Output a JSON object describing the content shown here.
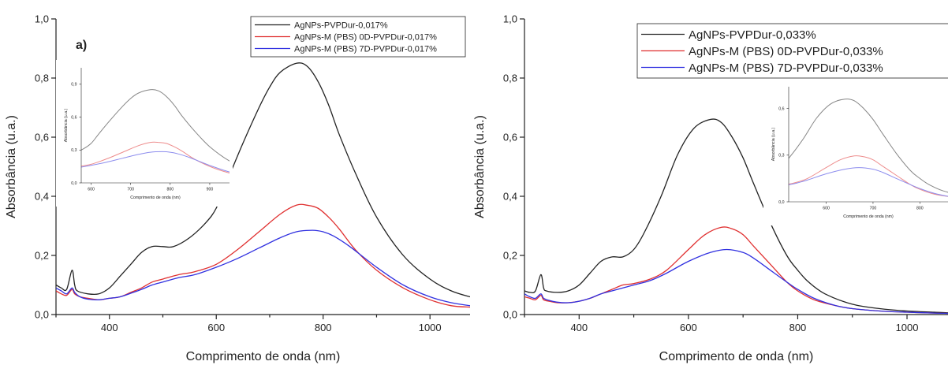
{
  "chart_data": [
    {
      "type": "line",
      "panel_label": "a)",
      "xlabel": "Comprimento de onda (nm)",
      "ylabel": "Absorbância (u.a.)",
      "xlim": [
        300,
        1075
      ],
      "ylim": [
        0,
        1.0
      ],
      "xticks": [
        "400",
        "600",
        "800",
        "1000"
      ],
      "yticks": [
        "0,0",
        "0,2",
        "0,4",
        "0,6",
        "0,8",
        "1,0"
      ],
      "legend_position": "top-right",
      "series": [
        {
          "name": "AgNPs-PVPDur-0,017%",
          "color": "#222222",
          "x": [
            300,
            310,
            320,
            330,
            335,
            340,
            360,
            380,
            400,
            420,
            440,
            460,
            480,
            500,
            520,
            550,
            580,
            600,
            620,
            650,
            680,
            700,
            720,
            750,
            770,
            790,
            810,
            830,
            860,
            900,
            950,
            1000,
            1040,
            1075
          ],
          "y": [
            0.1,
            0.09,
            0.085,
            0.15,
            0.1,
            0.08,
            0.07,
            0.07,
            0.09,
            0.13,
            0.17,
            0.21,
            0.23,
            0.23,
            0.23,
            0.26,
            0.31,
            0.36,
            0.45,
            0.58,
            0.7,
            0.77,
            0.82,
            0.85,
            0.84,
            0.79,
            0.71,
            0.61,
            0.48,
            0.33,
            0.2,
            0.12,
            0.08,
            0.06
          ]
        },
        {
          "name": "AgNPs-M (PBS) 0D-PVPDur-0,017%",
          "color": "#e03030",
          "x": [
            300,
            310,
            320,
            330,
            335,
            345,
            360,
            380,
            400,
            420,
            440,
            460,
            480,
            500,
            530,
            560,
            600,
            640,
            680,
            720,
            750,
            770,
            790,
            810,
            830,
            860,
            900,
            950,
            1000,
            1040,
            1075
          ],
          "y": [
            0.08,
            0.07,
            0.065,
            0.085,
            0.07,
            0.06,
            0.055,
            0.05,
            0.055,
            0.06,
            0.075,
            0.09,
            0.11,
            0.12,
            0.135,
            0.145,
            0.17,
            0.22,
            0.28,
            0.34,
            0.37,
            0.37,
            0.36,
            0.33,
            0.29,
            0.22,
            0.15,
            0.09,
            0.05,
            0.03,
            0.025
          ]
        },
        {
          "name": "AgNPs-M (PBS) 7D-PVPDur-0,017%",
          "color": "#3030e0",
          "x": [
            300,
            310,
            320,
            330,
            335,
            345,
            360,
            380,
            400,
            420,
            440,
            460,
            480,
            500,
            530,
            560,
            600,
            640,
            680,
            720,
            750,
            780,
            800,
            820,
            850,
            900,
            950,
            1000,
            1040,
            1075
          ],
          "y": [
            0.09,
            0.08,
            0.07,
            0.09,
            0.075,
            0.06,
            0.052,
            0.05,
            0.055,
            0.06,
            0.072,
            0.085,
            0.1,
            0.11,
            0.125,
            0.135,
            0.16,
            0.19,
            0.225,
            0.26,
            0.28,
            0.285,
            0.28,
            0.265,
            0.23,
            0.16,
            0.1,
            0.06,
            0.04,
            0.03
          ]
        }
      ],
      "inset": {
        "xlabel": "Comprimento de onda (nm)",
        "ylabel": "Absorbância (u.a.)",
        "xlim": [
          575,
          950
        ],
        "ylim": [
          0,
          1.05
        ],
        "xticks": [
          "600",
          "700",
          "800",
          "900"
        ],
        "yticks": [
          "0,0",
          "0,3",
          "0,6",
          "0,9"
        ]
      }
    },
    {
      "type": "line",
      "xlabel": "Comprimento de onda (nm)",
      "ylabel": "Absorbância (u.a.)",
      "xlim": [
        300,
        1075
      ],
      "ylim": [
        0,
        1.0
      ],
      "xticks": [
        "400",
        "600",
        "800",
        "1000"
      ],
      "yticks": [
        "0,0",
        "0,2",
        "0,4",
        "0,6",
        "0,8",
        "1,0"
      ],
      "legend_position": "top-right",
      "series": [
        {
          "name": "AgNPs-PVPDur-0,033%",
          "color": "#222222",
          "x": [
            300,
            310,
            320,
            330,
            335,
            340,
            360,
            380,
            400,
            420,
            440,
            460,
            480,
            500,
            520,
            550,
            580,
            610,
            640,
            660,
            680,
            700,
            720,
            750,
            780,
            800,
            820,
            850,
            900,
            950,
            1000,
            1050,
            1075
          ],
          "y": [
            0.08,
            0.075,
            0.08,
            0.135,
            0.09,
            0.08,
            0.075,
            0.08,
            0.1,
            0.14,
            0.18,
            0.195,
            0.195,
            0.22,
            0.28,
            0.4,
            0.54,
            0.63,
            0.66,
            0.65,
            0.6,
            0.53,
            0.44,
            0.31,
            0.2,
            0.15,
            0.11,
            0.07,
            0.035,
            0.02,
            0.012,
            0.008,
            0.006
          ]
        },
        {
          "name": "AgNPs-M (PBS) 0D-PVPDur-0,033%",
          "color": "#e03030",
          "x": [
            300,
            310,
            320,
            330,
            335,
            345,
            360,
            380,
            400,
            420,
            440,
            460,
            480,
            500,
            530,
            560,
            600,
            630,
            660,
            680,
            700,
            720,
            750,
            780,
            800,
            830,
            870,
            900,
            950,
            1000,
            1050,
            1075
          ],
          "y": [
            0.06,
            0.055,
            0.05,
            0.065,
            0.05,
            0.045,
            0.04,
            0.04,
            0.045,
            0.055,
            0.07,
            0.085,
            0.1,
            0.105,
            0.12,
            0.15,
            0.22,
            0.27,
            0.295,
            0.29,
            0.27,
            0.23,
            0.17,
            0.11,
            0.08,
            0.05,
            0.03,
            0.02,
            0.012,
            0.008,
            0.005,
            0.004
          ]
        },
        {
          "name": "AgNPs-M (PBS) 7D-PVPDur-0,033%",
          "color": "#3030e0",
          "x": [
            300,
            310,
            320,
            330,
            335,
            345,
            360,
            380,
            400,
            420,
            440,
            460,
            480,
            500,
            530,
            560,
            600,
            640,
            670,
            700,
            720,
            750,
            780,
            800,
            830,
            870,
            900,
            950,
            1000,
            1050,
            1075
          ],
          "y": [
            0.07,
            0.06,
            0.055,
            0.07,
            0.055,
            0.048,
            0.042,
            0.04,
            0.045,
            0.055,
            0.07,
            0.08,
            0.09,
            0.1,
            0.115,
            0.14,
            0.18,
            0.21,
            0.22,
            0.21,
            0.19,
            0.15,
            0.11,
            0.085,
            0.055,
            0.03,
            0.02,
            0.012,
            0.008,
            0.005,
            0.004
          ]
        }
      ],
      "inset": {
        "xlabel": "Comprimento de onda (nm)",
        "ylabel": "Absorbância (u.a.)",
        "xlim": [
          520,
          860
        ],
        "ylim": [
          0,
          0.74
        ],
        "xticks": [
          "600",
          "700",
          "800"
        ],
        "yticks": [
          "0,0",
          "0,3",
          "0,6"
        ]
      }
    }
  ]
}
